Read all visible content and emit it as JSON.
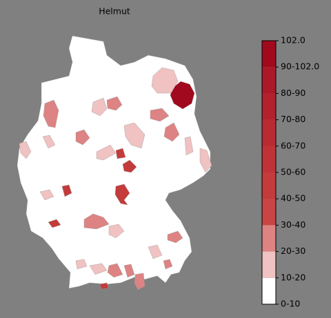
{
  "title": "Helmut",
  "colorbar": {
    "labels": [
      "0-10",
      "10-20",
      "20-30",
      "30-40",
      "40-50",
      "50-60",
      "60-70",
      "70-80",
      "80-90",
      "90-102.0",
      "102.0"
    ],
    "colors": [
      "#ffffff",
      "#f0c2c2",
      "#dd8383",
      "#c94444",
      "#c43b3b",
      "#bf3338",
      "#b92b33",
      "#b2222e",
      "#ab1828",
      "#a10a1e"
    ]
  }
}
